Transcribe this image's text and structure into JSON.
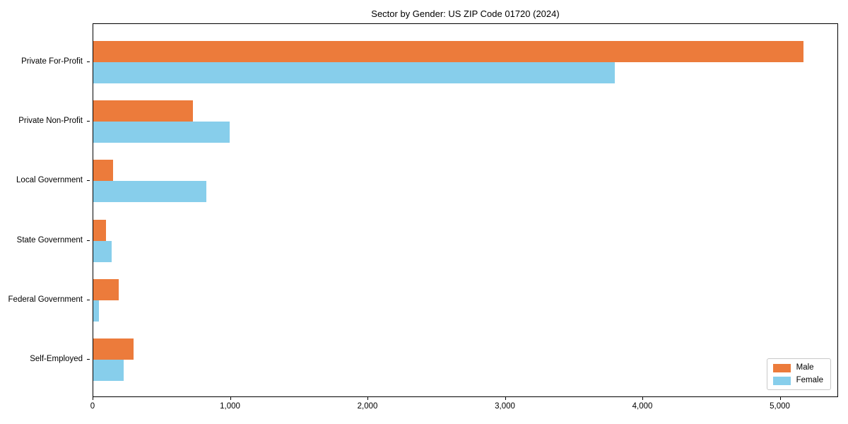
{
  "chart_data": {
    "type": "bar",
    "orientation": "horizontal",
    "title": "Sector by Gender: US ZIP Code 01720 (2024)",
    "xlabel": "",
    "ylabel": "",
    "categories": [
      "Private For-Profit",
      "Private Non-Profit",
      "Local Government",
      "State Government",
      "Federal Government",
      "Self-Employed"
    ],
    "series": [
      {
        "name": "Male",
        "color": "#ec7b3b",
        "values": [
          5166,
          723,
          146,
          93,
          184,
          295
        ]
      },
      {
        "name": "Female",
        "color": "#87ceeb",
        "values": [
          3793,
          991,
          821,
          132,
          41,
          223
        ]
      }
    ],
    "xlim": [
      0,
      5424
    ],
    "xticks": [
      0,
      1000,
      2000,
      3000,
      4000,
      5000
    ],
    "xtick_labels": [
      "0",
      "1,000",
      "2,000",
      "3,000",
      "4,000",
      "5,000"
    ],
    "grid": false,
    "legend": {
      "position": "lower right",
      "entries": [
        "Male",
        "Female"
      ]
    }
  }
}
